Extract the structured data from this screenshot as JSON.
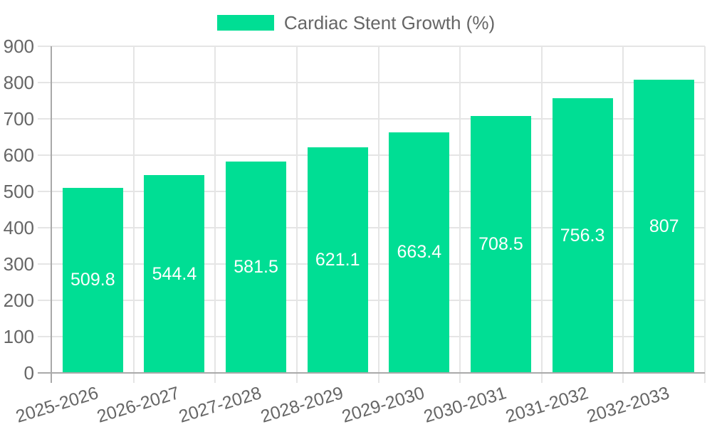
{
  "legend": {
    "items": [
      {
        "label": "Cardiac Stent Growth (%)",
        "swatch_color": "#00DE94"
      }
    ]
  },
  "chart_data": {
    "type": "bar",
    "title": "Cardiac Stent Growth (%)",
    "categories": [
      "2025-2026",
      "2026-2027",
      "2027-2028",
      "2028-2029",
      "2029-2030",
      "2030-2031",
      "2031-2032",
      "2032-2033"
    ],
    "series": [
      {
        "name": "Cardiac Stent Growth (%)",
        "values": [
          509.8,
          544.4,
          581.5,
          621.1,
          663.4,
          708.5,
          756.3,
          807
        ],
        "color": "#00DE94"
      }
    ],
    "value_labels": [
      "509.8",
      "544.4",
      "581.5",
      "621.1",
      "663.4",
      "708.5",
      "756.3",
      "807"
    ],
    "xlabel": "",
    "ylabel": "",
    "ylim": [
      0,
      900
    ],
    "yticks": [
      0,
      100,
      200,
      300,
      400,
      500,
      600,
      700,
      800,
      900
    ],
    "grid": true,
    "legend_position": "top",
    "value_label_position": "center-inside",
    "x_label_rotation_deg": -17
  },
  "style": {
    "bar_color": "#00DE94",
    "axis_text_color": "#666666",
    "grid_color": "#e5e5e5",
    "axis_line_color": "#a9a9a9",
    "value_label_color": "#ffffff",
    "background": "#ffffff"
  }
}
